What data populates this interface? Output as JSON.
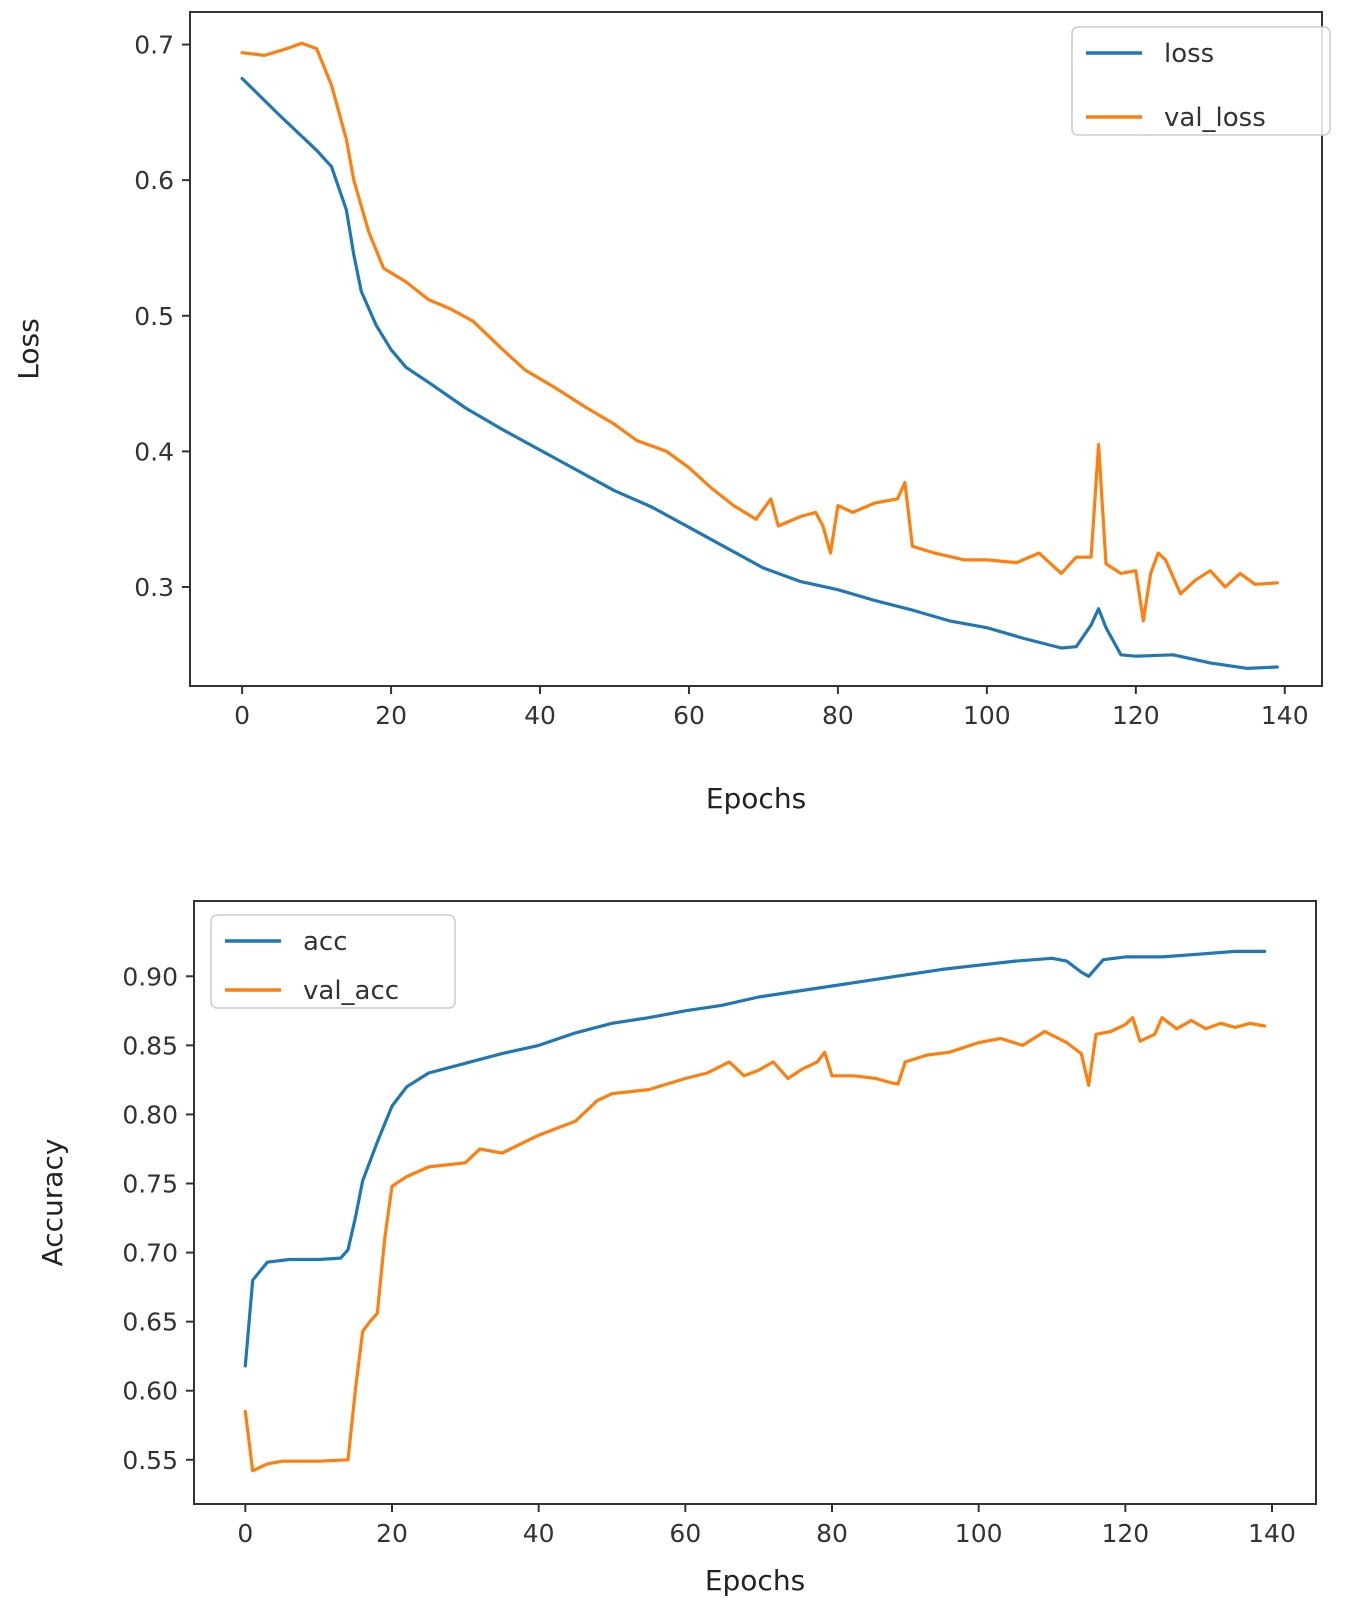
{
  "chart_data": [
    {
      "type": "line",
      "title": "",
      "xlabel": "Epochs",
      "ylabel": "Loss",
      "xlim": [
        -7,
        145
      ],
      "ylim": [
        0.227,
        0.724
      ],
      "xticks": [
        0,
        20,
        40,
        60,
        80,
        100,
        120,
        140
      ],
      "xtick_labels": [
        "0",
        "20",
        "40",
        "60",
        "80",
        "100",
        "120",
        "140"
      ],
      "yticks": [
        0.3,
        0.4,
        0.5,
        0.6,
        0.7
      ],
      "ytick_labels": [
        "0.3",
        "0.4",
        "0.5",
        "0.6",
        "0.7"
      ],
      "grid": false,
      "legend_placement": "top-right",
      "series": [
        {
          "name": "loss",
          "color": "#1f77b4",
          "points": [
            [
              0,
              0.675
            ],
            [
              5,
              0.648
            ],
            [
              10,
              0.622
            ],
            [
              12,
              0.61
            ],
            [
              14,
              0.578
            ],
            [
              15,
              0.545
            ],
            [
              16,
              0.518
            ],
            [
              18,
              0.493
            ],
            [
              20,
              0.475
            ],
            [
              22,
              0.462
            ],
            [
              25,
              0.451
            ],
            [
              30,
              0.432
            ],
            [
              35,
              0.416
            ],
            [
              40,
              0.401
            ],
            [
              45,
              0.386
            ],
            [
              50,
              0.371
            ],
            [
              55,
              0.359
            ],
            [
              60,
              0.344
            ],
            [
              65,
              0.329
            ],
            [
              70,
              0.314
            ],
            [
              75,
              0.304
            ],
            [
              80,
              0.298
            ],
            [
              85,
              0.29
            ],
            [
              90,
              0.283
            ],
            [
              95,
              0.275
            ],
            [
              100,
              0.27
            ],
            [
              105,
              0.262
            ],
            [
              110,
              0.255
            ],
            [
              112,
              0.256
            ],
            [
              114,
              0.272
            ],
            [
              115,
              0.284
            ],
            [
              116,
              0.27
            ],
            [
              118,
              0.25
            ],
            [
              120,
              0.249
            ],
            [
              125,
              0.25
            ],
            [
              130,
              0.244
            ],
            [
              135,
              0.24
            ],
            [
              139,
              0.241
            ]
          ]
        },
        {
          "name": "val_loss",
          "color": "#ff7f0e",
          "points": [
            [
              0,
              0.694
            ],
            [
              3,
              0.692
            ],
            [
              6,
              0.697
            ],
            [
              8,
              0.701
            ],
            [
              10,
              0.697
            ],
            [
              12,
              0.67
            ],
            [
              14,
              0.63
            ],
            [
              15,
              0.6
            ],
            [
              17,
              0.562
            ],
            [
              19,
              0.535
            ],
            [
              22,
              0.525
            ],
            [
              25,
              0.512
            ],
            [
              28,
              0.505
            ],
            [
              31,
              0.496
            ],
            [
              35,
              0.475
            ],
            [
              38,
              0.46
            ],
            [
              42,
              0.447
            ],
            [
              46,
              0.433
            ],
            [
              50,
              0.42
            ],
            [
              53,
              0.408
            ],
            [
              57,
              0.4
            ],
            [
              60,
              0.388
            ],
            [
              63,
              0.373
            ],
            [
              66,
              0.36
            ],
            [
              69,
              0.35
            ],
            [
              71,
              0.365
            ],
            [
              72,
              0.345
            ],
            [
              75,
              0.352
            ],
            [
              77,
              0.355
            ],
            [
              78,
              0.345
            ],
            [
              79,
              0.325
            ],
            [
              80,
              0.36
            ],
            [
              82,
              0.355
            ],
            [
              85,
              0.362
            ],
            [
              88,
              0.365
            ],
            [
              89,
              0.377
            ],
            [
              90,
              0.33
            ],
            [
              93,
              0.325
            ],
            [
              97,
              0.32
            ],
            [
              100,
              0.32
            ],
            [
              104,
              0.318
            ],
            [
              107,
              0.325
            ],
            [
              110,
              0.31
            ],
            [
              112,
              0.322
            ],
            [
              114,
              0.322
            ],
            [
              115,
              0.405
            ],
            [
              116,
              0.317
            ],
            [
              118,
              0.31
            ],
            [
              120,
              0.312
            ],
            [
              121,
              0.275
            ],
            [
              122,
              0.31
            ],
            [
              123,
              0.325
            ],
            [
              124,
              0.32
            ],
            [
              126,
              0.295
            ],
            [
              128,
              0.305
            ],
            [
              130,
              0.312
            ],
            [
              132,
              0.3
            ],
            [
              134,
              0.31
            ],
            [
              136,
              0.302
            ],
            [
              139,
              0.303
            ]
          ]
        }
      ]
    },
    {
      "type": "line",
      "title": "",
      "xlabel": "Epochs",
      "ylabel": "Accuracy",
      "xlim": [
        -7,
        146
      ],
      "ylim": [
        0.518,
        0.9545
      ],
      "xticks": [
        0,
        20,
        40,
        60,
        80,
        100,
        120,
        140
      ],
      "xtick_labels": [
        "0",
        "20",
        "40",
        "60",
        "80",
        "100",
        "120",
        "140"
      ],
      "yticks": [
        0.55,
        0.6,
        0.65,
        0.7,
        0.75,
        0.8,
        0.85,
        0.9
      ],
      "ytick_labels": [
        "0.55",
        "0.60",
        "0.65",
        "0.70",
        "0.75",
        "0.80",
        "0.85",
        "0.90"
      ],
      "grid": false,
      "legend_placement": "top-left",
      "series": [
        {
          "name": "acc",
          "color": "#1f77b4",
          "points": [
            [
              0,
              0.618
            ],
            [
              1,
              0.68
            ],
            [
              3,
              0.693
            ],
            [
              6,
              0.695
            ],
            [
              10,
              0.695
            ],
            [
              13,
              0.696
            ],
            [
              14,
              0.702
            ],
            [
              15,
              0.725
            ],
            [
              16,
              0.752
            ],
            [
              18,
              0.78
            ],
            [
              20,
              0.806
            ],
            [
              22,
              0.82
            ],
            [
              25,
              0.83
            ],
            [
              30,
              0.837
            ],
            [
              35,
              0.844
            ],
            [
              40,
              0.85
            ],
            [
              45,
              0.859
            ],
            [
              50,
              0.866
            ],
            [
              55,
              0.87
            ],
            [
              60,
              0.875
            ],
            [
              65,
              0.879
            ],
            [
              70,
              0.885
            ],
            [
              75,
              0.889
            ],
            [
              80,
              0.893
            ],
            [
              85,
              0.897
            ],
            [
              90,
              0.901
            ],
            [
              95,
              0.905
            ],
            [
              100,
              0.908
            ],
            [
              105,
              0.911
            ],
            [
              110,
              0.913
            ],
            [
              112,
              0.911
            ],
            [
              114,
              0.903
            ],
            [
              115,
              0.9
            ],
            [
              117,
              0.912
            ],
            [
              120,
              0.914
            ],
            [
              125,
              0.914
            ],
            [
              130,
              0.916
            ],
            [
              135,
              0.918
            ],
            [
              139,
              0.918
            ]
          ]
        },
        {
          "name": "val_acc",
          "color": "#ff7f0e",
          "points": [
            [
              0,
              0.585
            ],
            [
              1,
              0.542
            ],
            [
              3,
              0.547
            ],
            [
              5,
              0.549
            ],
            [
              10,
              0.549
            ],
            [
              14,
              0.55
            ],
            [
              15,
              0.6
            ],
            [
              16,
              0.643
            ],
            [
              17,
              0.65
            ],
            [
              18,
              0.656
            ],
            [
              19,
              0.71
            ],
            [
              20,
              0.748
            ],
            [
              22,
              0.755
            ],
            [
              25,
              0.762
            ],
            [
              30,
              0.765
            ],
            [
              32,
              0.775
            ],
            [
              35,
              0.772
            ],
            [
              40,
              0.785
            ],
            [
              45,
              0.795
            ],
            [
              48,
              0.81
            ],
            [
              50,
              0.815
            ],
            [
              55,
              0.818
            ],
            [
              60,
              0.826
            ],
            [
              63,
              0.83
            ],
            [
              66,
              0.838
            ],
            [
              68,
              0.828
            ],
            [
              70,
              0.832
            ],
            [
              72,
              0.838
            ],
            [
              74,
              0.826
            ],
            [
              76,
              0.833
            ],
            [
              78,
              0.838
            ],
            [
              79,
              0.845
            ],
            [
              80,
              0.828
            ],
            [
              83,
              0.828
            ],
            [
              86,
              0.826
            ],
            [
              88,
              0.823
            ],
            [
              89,
              0.822
            ],
            [
              90,
              0.838
            ],
            [
              93,
              0.843
            ],
            [
              96,
              0.845
            ],
            [
              100,
              0.852
            ],
            [
              103,
              0.855
            ],
            [
              106,
              0.85
            ],
            [
              109,
              0.86
            ],
            [
              112,
              0.852
            ],
            [
              114,
              0.844
            ],
            [
              115,
              0.821
            ],
            [
              116,
              0.858
            ],
            [
              118,
              0.86
            ],
            [
              120,
              0.865
            ],
            [
              121,
              0.87
            ],
            [
              122,
              0.853
            ],
            [
              124,
              0.858
            ],
            [
              125,
              0.87
            ],
            [
              127,
              0.862
            ],
            [
              129,
              0.868
            ],
            [
              131,
              0.862
            ],
            [
              133,
              0.866
            ],
            [
              135,
              0.863
            ],
            [
              137,
              0.866
            ],
            [
              139,
              0.864
            ]
          ]
        }
      ]
    }
  ]
}
